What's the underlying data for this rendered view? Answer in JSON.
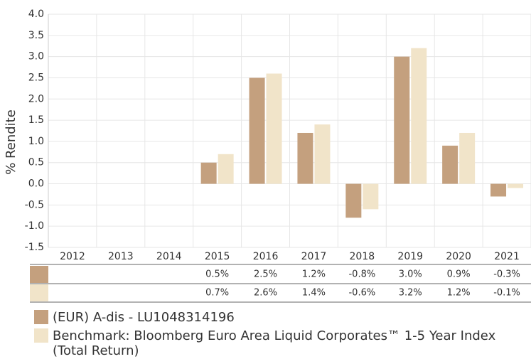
{
  "chart_data": {
    "type": "bar",
    "y_label": "% Rendite",
    "categories": [
      "2012",
      "2013",
      "2014",
      "2015",
      "2016",
      "2017",
      "2018",
      "2019",
      "2020",
      "2021"
    ],
    "series": [
      {
        "name": "(EUR) A-dis - LU1048314196",
        "color": "#c4a07e",
        "values": [
          null,
          null,
          null,
          0.5,
          2.5,
          1.2,
          -0.8,
          3.0,
          0.9,
          -0.3
        ],
        "value_labels": [
          null,
          null,
          null,
          "0.5%",
          "2.5%",
          "1.2%",
          "-0.8%",
          "3.0%",
          "0.9%",
          "-0.3%"
        ]
      },
      {
        "name": "Benchmark: Bloomberg Euro Area Liquid Corporates™ 1-5 Year Index (Total Return)",
        "color": "#f1e4c9",
        "values": [
          null,
          null,
          null,
          0.7,
          2.6,
          1.4,
          -0.6,
          3.2,
          1.2,
          -0.1
        ],
        "value_labels": [
          null,
          null,
          null,
          "0.7%",
          "2.6%",
          "1.4%",
          "-0.6%",
          "3.2%",
          "1.2%",
          "-0.1%"
        ]
      }
    ],
    "ylim": [
      -1.5,
      4.0
    ],
    "yticks": [
      {
        "value": 4.0,
        "label": "4.0"
      },
      3.5,
      {
        "value": 3.0,
        "label": "3.0"
      },
      2.5,
      {
        "value": 2.0,
        "label": "2.0"
      },
      1.5,
      {
        "value": 1.0,
        "label": "1.0"
      },
      0.5,
      {
        "value": 0.0,
        "label": "0.0"
      },
      -0.5,
      {
        "value": -1.0,
        "label": "-1.0"
      },
      -1.5
    ],
    "grid": true
  }
}
